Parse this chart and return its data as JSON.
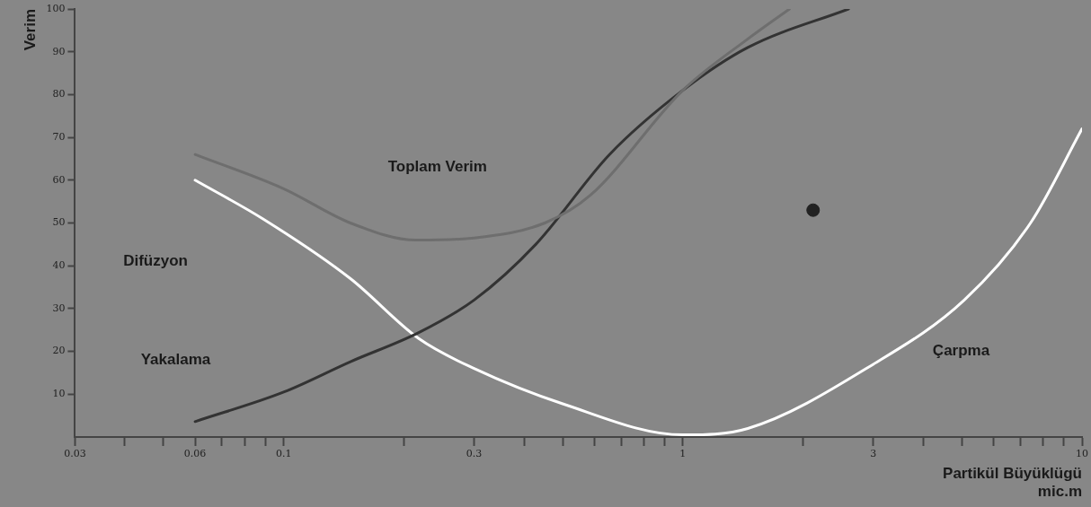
{
  "chart_data": {
    "type": "line",
    "xlabel": "Partikül Büyüklügü\nmic.m",
    "ylabel": "Verim",
    "log": "x",
    "grid": false,
    "legend": false,
    "marker": "none",
    "line_style": "solid",
    "xlim": [
      0.03,
      10
    ],
    "ylim": [
      0,
      100
    ],
    "xticks": [
      0.03,
      {
        "value": 0.04,
        "label": null
      },
      {
        "value": 0.05,
        "label": null
      },
      0.06,
      {
        "value": 0.07,
        "label": null
      },
      {
        "value": 0.08,
        "label": null
      },
      {
        "value": 0.09,
        "label": null
      },
      0.1,
      {
        "value": 0.2,
        "label": null
      },
      0.3,
      {
        "value": 0.4,
        "label": null
      },
      {
        "value": 0.5,
        "label": null
      },
      {
        "value": 0.6,
        "label": null
      },
      {
        "value": 0.7,
        "label": null
      },
      {
        "value": 0.8,
        "label": null
      },
      {
        "value": 0.9,
        "label": null
      },
      1,
      {
        "value": 2,
        "label": null
      },
      3,
      {
        "value": 4,
        "label": null
      },
      {
        "value": 5,
        "label": null
      },
      {
        "value": 6,
        "label": null
      },
      {
        "value": 7,
        "label": null
      },
      {
        "value": 8,
        "label": null
      },
      {
        "value": 9,
        "label": null
      },
      10
    ],
    "yticks": [
      10,
      20,
      30,
      40,
      50,
      60,
      70,
      80,
      90,
      100
    ],
    "series": [
      {
        "color": "#6e6e6e",
        "x": [
          0.06,
          0.1,
          0.147,
          0.215,
          0.3,
          0.451,
          0.587,
          1,
          1.455,
          1.85
        ],
        "values": [
          66,
          58,
          50,
          46,
          46.5,
          50,
          56.5,
          81,
          93,
          100
        ]
      },
      {
        "color": "#333333",
        "x": [
          0.06,
          0.1,
          0.147,
          0.218,
          0.3,
          0.428,
          0.655,
          1,
          1.455,
          2.6
        ],
        "values": [
          3.6,
          10.5,
          17.6,
          24.4,
          32,
          45,
          66,
          81,
          91,
          100
        ]
      },
      {
        "color": "#ffffff",
        "x": [
          0.06,
          0.0886,
          0.147,
          0.218,
          0.3,
          0.502,
          1,
          1.455,
          3,
          5.07,
          7.43,
          10
        ],
        "values": [
          60,
          51,
          37,
          23,
          16,
          7.7,
          0.5,
          2,
          17,
          32,
          50,
          72
        ]
      },
      {
        "type": "scatter",
        "color": "#222222",
        "marker": "circle",
        "x": [
          2.12
        ],
        "values": [
          53
        ]
      }
    ],
    "annotations": [
      "Toplam Verim",
      "Difüzyon",
      "Yakalama",
      "Çarpma"
    ]
  }
}
